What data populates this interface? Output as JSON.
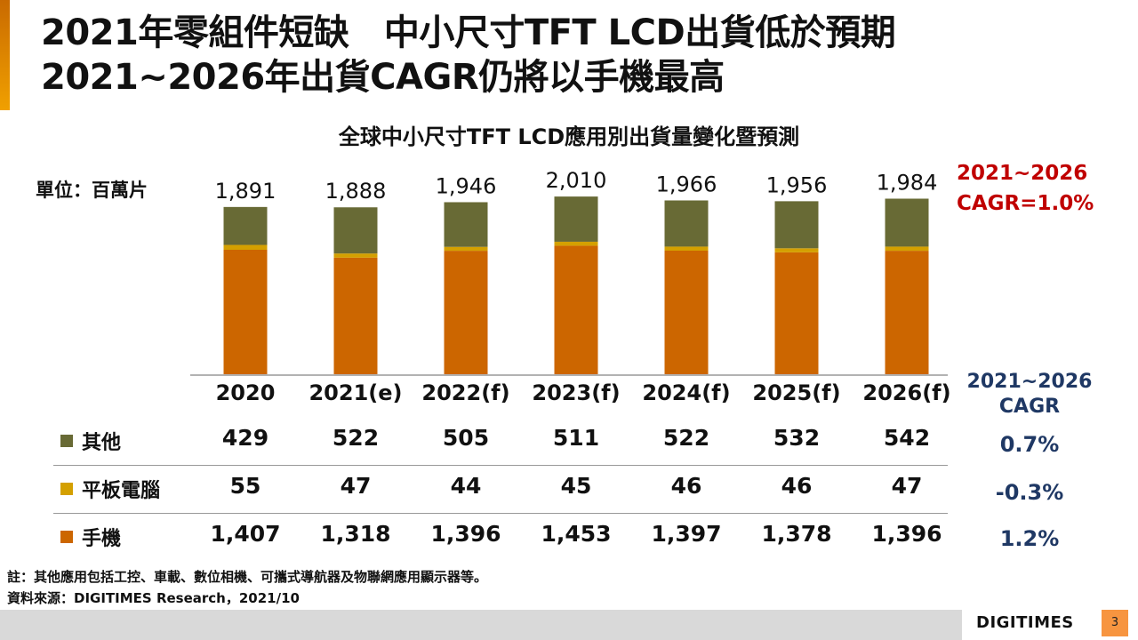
{
  "title": {
    "line1": "2021年零組件短缺　中小尺寸TFT LCD出貨低於預期",
    "line2": "2021~2026年出貨CAGR仍將以手機最高"
  },
  "unit_label": "單位：百萬片",
  "cagr_total": {
    "line1": "2021~2026",
    "line2": "CAGR=1.0%"
  },
  "cagr_table": {
    "header_line1": "2021~2026",
    "header_line2": "CAGR",
    "values": [
      "0.7%",
      "-0.3%",
      "1.2%"
    ]
  },
  "chart_data": {
    "type": "bar",
    "stacked": true,
    "title": "全球中小尺寸TFT LCD應用別出貨量變化暨預測",
    "unit": "百萬片",
    "categories": [
      "2020",
      "2021(e)",
      "2022(f)",
      "2023(f)",
      "2024(f)",
      "2025(f)",
      "2026(f)"
    ],
    "series": [
      {
        "name": "手機",
        "color": "#cc6600",
        "values": [
          1407,
          1318,
          1396,
          1453,
          1397,
          1378,
          1396
        ],
        "labels": [
          "1,407",
          "1,318",
          "1,396",
          "1,453",
          "1,397",
          "1,378",
          "1,396"
        ]
      },
      {
        "name": "平板電腦",
        "color": "#d4a000",
        "values": [
          55,
          47,
          44,
          45,
          46,
          46,
          47
        ],
        "labels": [
          "55",
          "47",
          "44",
          "45",
          "46",
          "46",
          "47"
        ]
      },
      {
        "name": "其他",
        "color": "#686a35",
        "values": [
          429,
          522,
          505,
          511,
          522,
          532,
          542
        ],
        "labels": [
          "429",
          "522",
          "505",
          "511",
          "522",
          "532",
          "542"
        ]
      }
    ],
    "totals": [
      1891,
      1888,
      1946,
      2010,
      1966,
      1956,
      1984
    ],
    "total_labels": [
      "1,891",
      "1,888",
      "1,946",
      "2,010",
      "1,966",
      "1,956",
      "1,984"
    ],
    "ylim": [
      0,
      2100
    ],
    "grid": false,
    "legend": "table-below"
  },
  "table_rows": [
    {
      "label": "其他",
      "series_index": 2
    },
    {
      "label": "平板電腦",
      "series_index": 1
    },
    {
      "label": "手機",
      "series_index": 0
    }
  ],
  "notes": {
    "note": "註：其他應用包括工控、車載、數位相機、可攜式導航器及物聯網應用顯示器等。",
    "source": "資料來源：DIGITIMES Research，2021/10"
  },
  "footer": {
    "logo": "DIGITIMES",
    "page_number": "3"
  }
}
